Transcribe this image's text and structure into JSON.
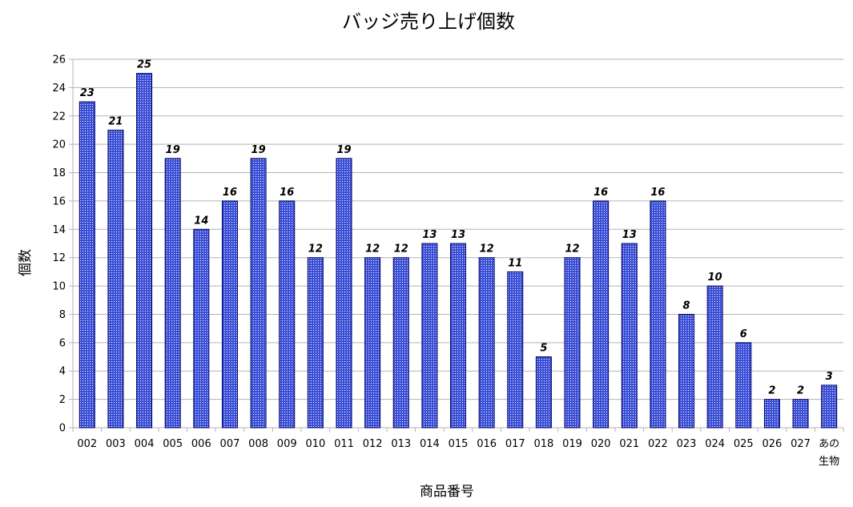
{
  "colors": {
    "bar_fill": "#3b4fd6",
    "bar_dots": "#ffffff",
    "bar_border": "#000066",
    "grid": "#b3b3b3",
    "background": "#ffffff"
  },
  "chart_data": {
    "type": "bar",
    "title": "バッジ売り上げ個数",
    "xlabel": "商品番号",
    "ylabel": "個数",
    "ylim": [
      0,
      26
    ],
    "yticks": [
      0,
      2,
      4,
      6,
      8,
      10,
      12,
      14,
      16,
      18,
      20,
      22,
      24,
      26
    ],
    "grid": true,
    "legend": "none",
    "categories": [
      "002",
      "003",
      "004",
      "005",
      "006",
      "007",
      "008",
      "009",
      "010",
      "011",
      "012",
      "013",
      "014",
      "015",
      "016",
      "017",
      "018",
      "019",
      "020",
      "021",
      "022",
      "023",
      "024",
      "025",
      "026",
      "027",
      "あの生物"
    ],
    "values": [
      23,
      21,
      25,
      19,
      14,
      16,
      19,
      16,
      12,
      19,
      12,
      12,
      13,
      13,
      12,
      11,
      5,
      12,
      16,
      13,
      16,
      8,
      10,
      6,
      2,
      2,
      3
    ]
  }
}
